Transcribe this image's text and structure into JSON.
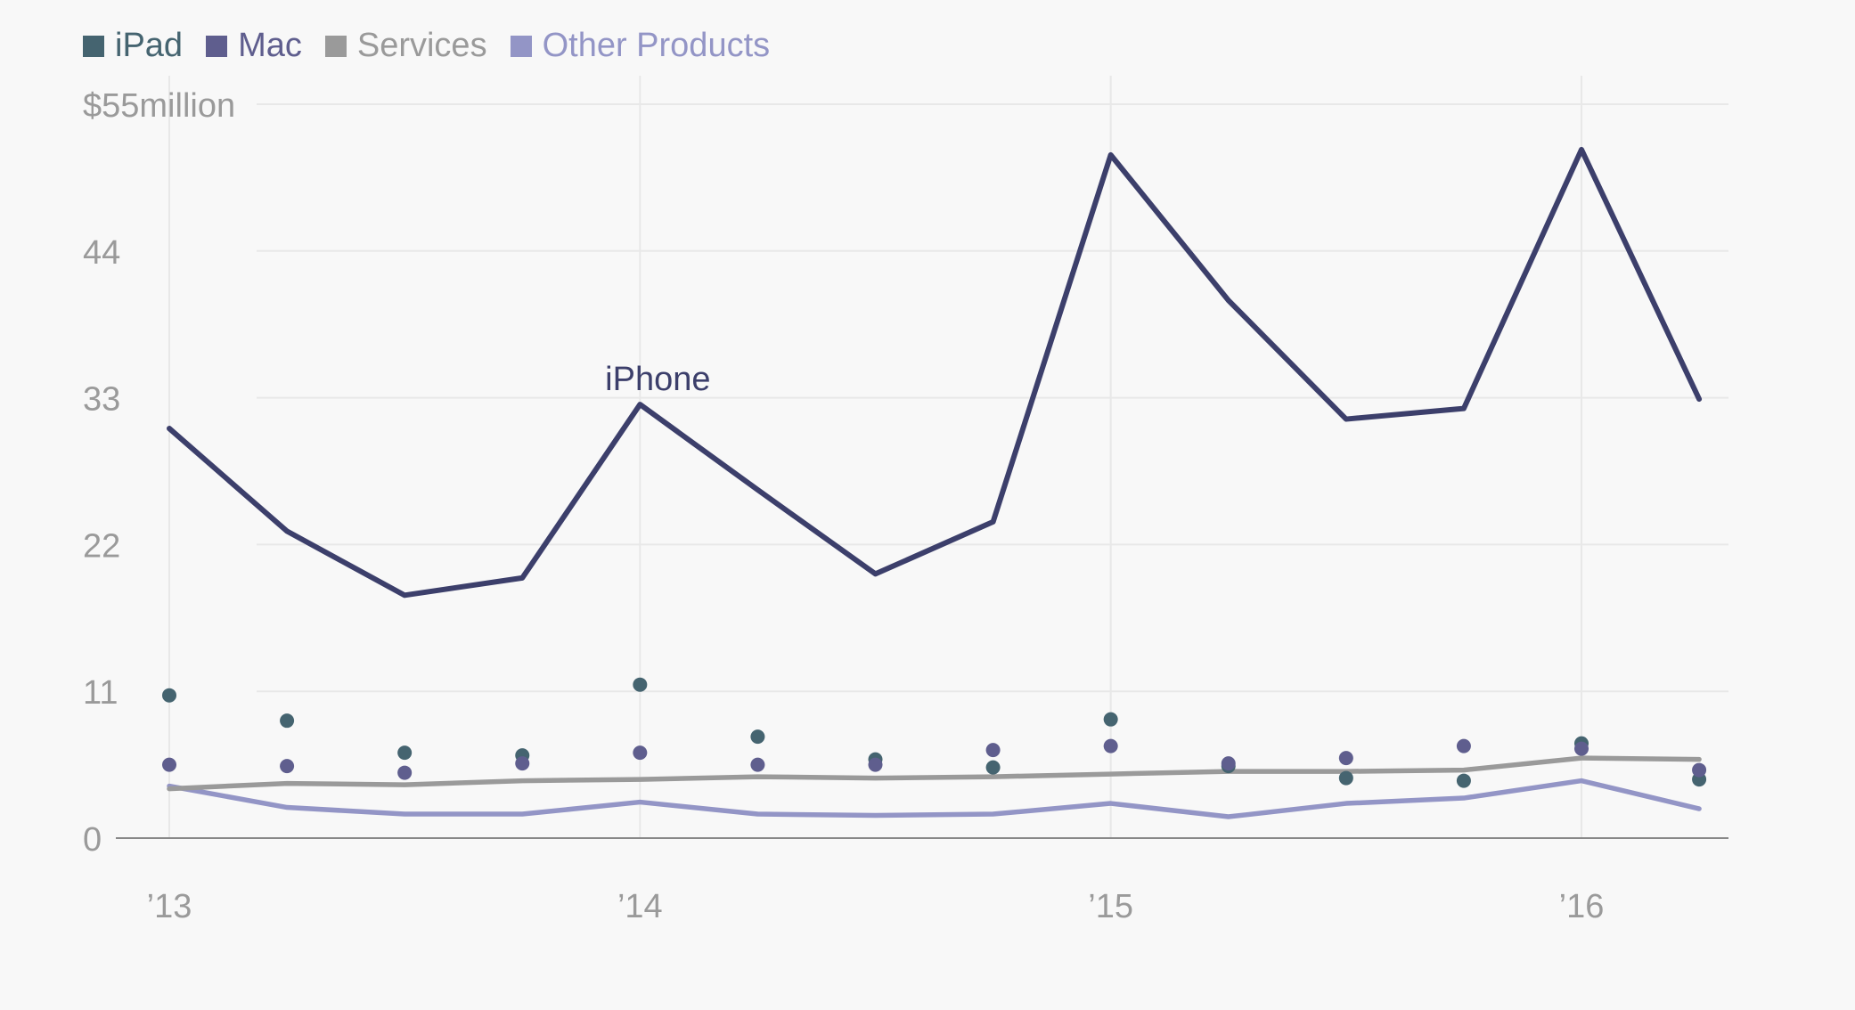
{
  "legend": [
    {
      "label": "iPad",
      "color": "#456470"
    },
    {
      "label": "Mac",
      "color": "#5f5e8e"
    },
    {
      "label": "Services",
      "color": "#9a9a9a"
    },
    {
      "label": "Other Products",
      "color": "#9395c6"
    }
  ],
  "chart_data": {
    "type": "line",
    "title": "",
    "xlabel": "",
    "ylabel": "",
    "ylim": [
      0,
      55
    ],
    "yticks": [
      {
        "value": 0,
        "label": "0"
      },
      {
        "value": 11,
        "label": "11"
      },
      {
        "value": 22,
        "label": "22"
      },
      {
        "value": 33,
        "label": "33"
      },
      {
        "value": 44,
        "label": "44"
      },
      {
        "value": 55,
        "label": "$55million"
      }
    ],
    "xticks": [
      {
        "value": 2013.0,
        "label": "’13"
      },
      {
        "value": 2014.0,
        "label": "’14"
      },
      {
        "value": 2015.0,
        "label": "’15"
      },
      {
        "value": 2016.0,
        "label": "’16"
      }
    ],
    "x": [
      2013.0,
      2013.25,
      2013.5,
      2013.75,
      2014.0,
      2014.25,
      2014.5,
      2014.75,
      2015.0,
      2015.25,
      2015.5,
      2015.75,
      2016.0,
      2016.25
    ],
    "grid": true,
    "series": [
      {
        "name": "iPhone",
        "color": "#3c3f6b",
        "style": "line",
        "values": [
          30.7,
          23.0,
          18.2,
          19.5,
          32.5,
          26.1,
          19.8,
          23.7,
          51.2,
          40.3,
          31.4,
          32.2,
          51.6,
          32.9
        ]
      },
      {
        "name": "iPad",
        "color": "#456470",
        "style": "dots",
        "values": [
          10.7,
          8.8,
          6.4,
          6.2,
          11.5,
          7.6,
          5.9,
          5.3,
          8.9,
          5.4,
          4.5,
          4.3,
          7.1,
          4.4
        ]
      },
      {
        "name": "Mac",
        "color": "#5f5e8e",
        "style": "dots",
        "values": [
          5.5,
          5.4,
          4.9,
          5.6,
          6.4,
          5.5,
          5.5,
          6.6,
          6.9,
          5.6,
          6.0,
          6.9,
          6.7,
          5.1
        ]
      },
      {
        "name": "Services",
        "color": "#9a9a9a",
        "style": "line",
        "values": [
          3.7,
          4.1,
          4.0,
          4.3,
          4.4,
          4.6,
          4.5,
          4.6,
          4.8,
          5.0,
          5.0,
          5.1,
          6.0,
          5.9
        ]
      },
      {
        "name": "Other Products",
        "color": "#9395c6",
        "style": "line",
        "values": [
          3.9,
          2.3,
          1.8,
          1.8,
          2.7,
          1.8,
          1.7,
          1.8,
          2.6,
          1.6,
          2.6,
          3.0,
          4.3,
          2.2
        ]
      }
    ],
    "annotations": [
      {
        "text": "iPhone",
        "series": "iPhone",
        "x": 2014.0,
        "color": "#3c3f6b"
      }
    ],
    "colors": {
      "axis_text": "#9a9a9a",
      "grid": "#e8e8e8",
      "baseline": "#888888"
    }
  }
}
